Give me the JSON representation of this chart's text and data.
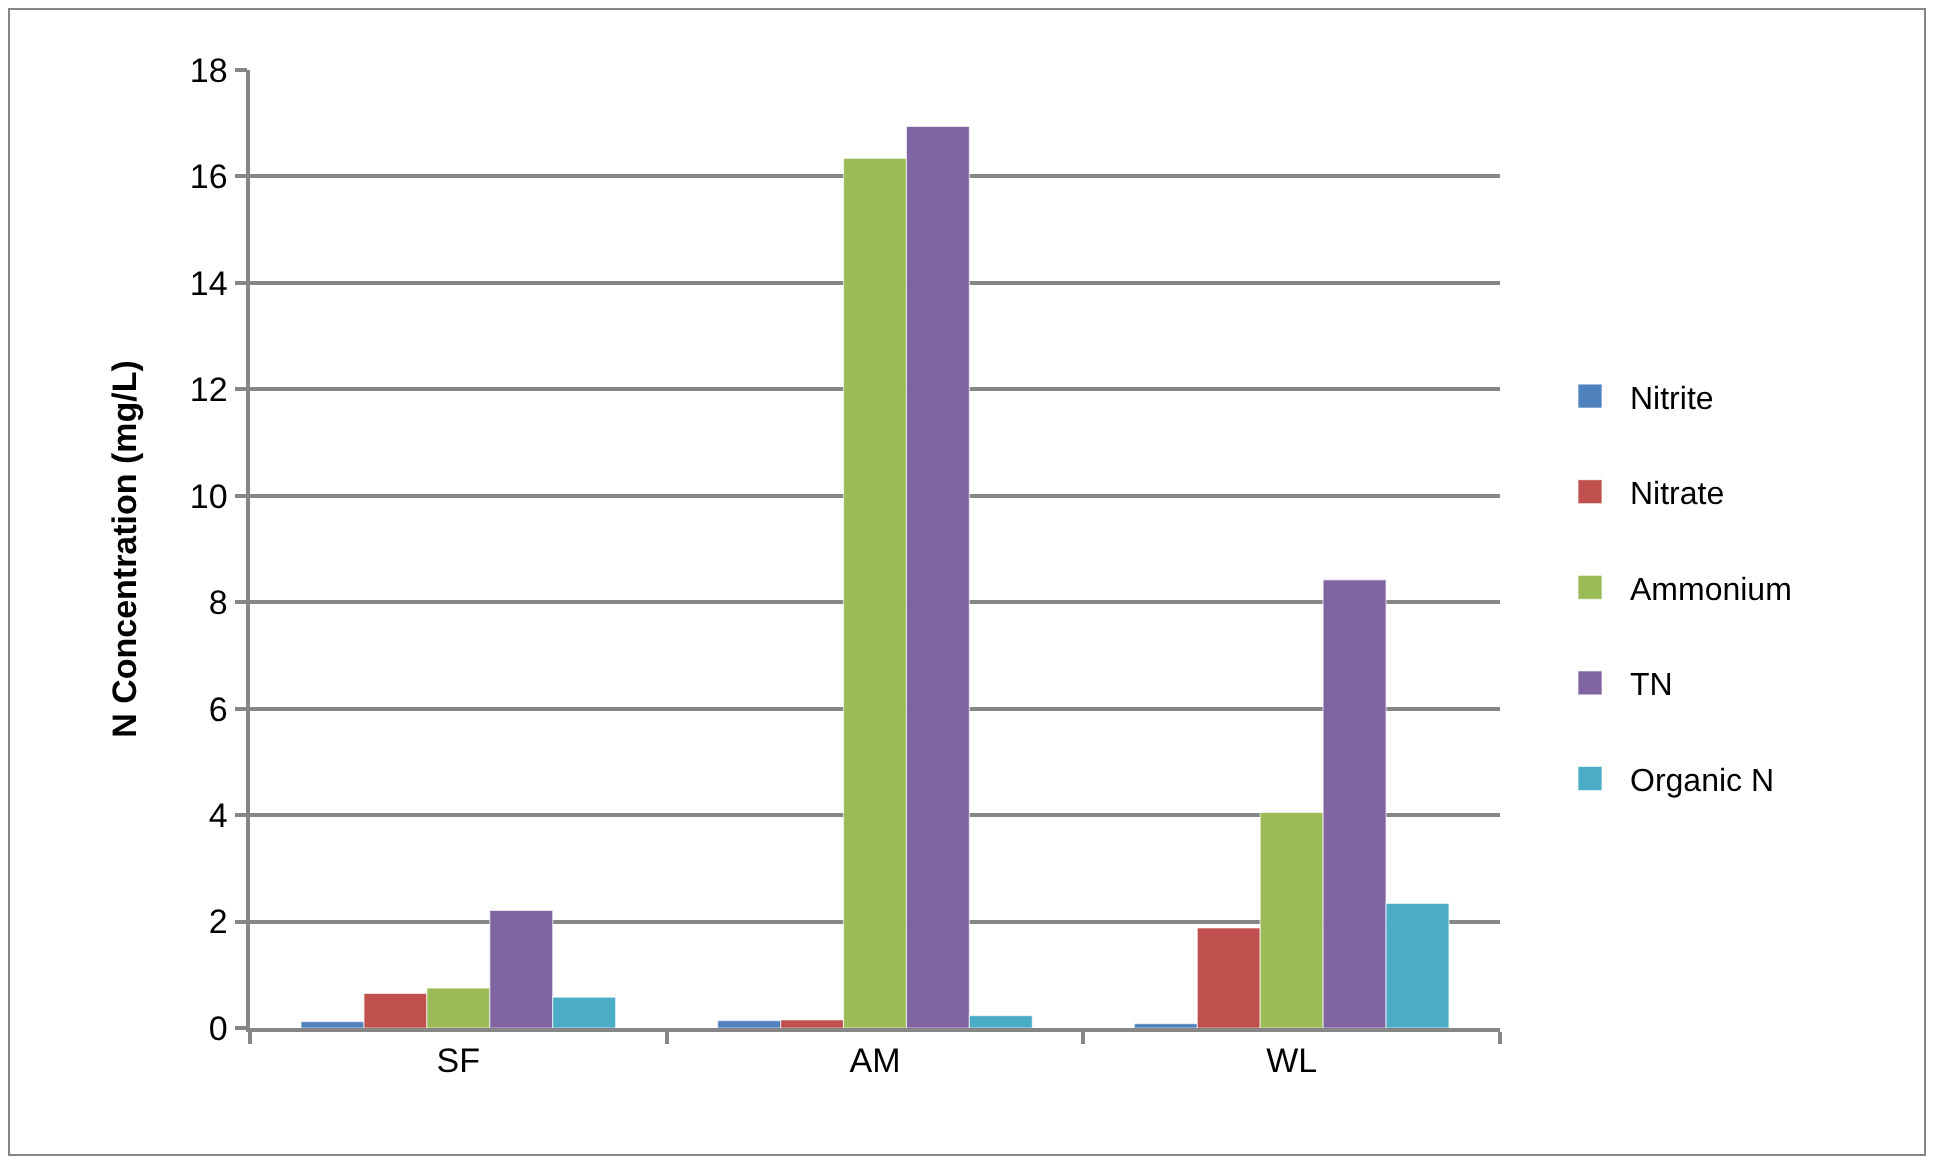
{
  "chart_data": {
    "type": "bar",
    "ylabel": "N Concentration (mg/L)",
    "categories": [
      "SF",
      "AM",
      "WL"
    ],
    "series": [
      {
        "name": "Nitrite",
        "color": "#4f81bd",
        "values": [
          0.12,
          0.14,
          0.08
        ]
      },
      {
        "name": "Nitrate",
        "color": "#c0504d",
        "values": [
          0.65,
          0.15,
          1.88
        ]
      },
      {
        "name": "Ammonium",
        "color": "#9bbb59",
        "values": [
          0.75,
          16.34,
          4.05
        ]
      },
      {
        "name": "TN",
        "color": "#8064a2",
        "values": [
          2.21,
          16.94,
          8.42
        ]
      },
      {
        "name": "Organic N",
        "color": "#4bacc6",
        "values": [
          0.58,
          0.23,
          2.34
        ]
      }
    ],
    "ylim": [
      0,
      18
    ],
    "yticks": [
      0,
      2,
      4,
      6,
      8,
      10,
      12,
      14,
      16,
      18
    ],
    "grid": "y",
    "legend": "right"
  }
}
